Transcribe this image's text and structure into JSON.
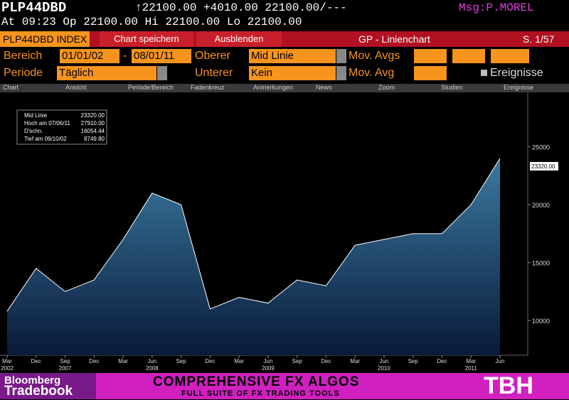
{
  "header": {
    "ticker": "PLP44DBD",
    "quote": "↑22100.00 +4010.00  22100.00/---",
    "message": "Msg:P.MOREL",
    "line2": "At 09:23  Op 22100.00 Hi 22100.00 Lo 22100.00"
  },
  "menu": {
    "index": "PLP44DBD INDEX",
    "save": "Chart speichern",
    "hide": "Ausblenden",
    "title": "GP - Linienchart",
    "page": "S. 1/57"
  },
  "settings": {
    "range_label": "Bereich",
    "start": "01/01/02",
    "dash": "-",
    "end": "08/01/11",
    "upper_label": "Oberer",
    "upper": "Mid Linie",
    "mov_avgs": "Mov. Avgs",
    "period_label": "Periode",
    "period": "Täglich",
    "lower_label": "Unterer",
    "lower": "Kein",
    "mov_avg": "Mov. Avg",
    "events": "Ereignisse"
  },
  "toolbar": [
    "Chart",
    "Ansicht",
    "Periode/Bereich",
    "Fadenkreuz",
    "Anmerkungen",
    "News",
    "Zoom",
    "Studien",
    "Ereignisse"
  ],
  "chart_data": {
    "type": "area",
    "color": "#ffffff",
    "categories": [
      "Mar",
      "Dec",
      "Sep",
      "Dec",
      "Mar",
      "Jun",
      "Sep",
      "Dec",
      "Mar",
      "Jun",
      "Sep",
      "Dec",
      "Mar",
      "Jun",
      "Sep",
      "Dec",
      "Mar",
      "Jun"
    ],
    "years": [
      "2002",
      null,
      "2007",
      null,
      null,
      "2008",
      null,
      null,
      null,
      "2009",
      null,
      null,
      null,
      "2010",
      null,
      null,
      "2011",
      null
    ],
    "values": [
      10800,
      14500,
      12500,
      13500,
      17000,
      21000,
      20000,
      11000,
      12000,
      11500,
      13500,
      13000,
      16500,
      17000,
      17500,
      17500,
      20000,
      24000
    ],
    "ylim": [
      7000,
      29700
    ],
    "yticks": [
      10000,
      15000,
      20000,
      25000
    ],
    "last_value": 23320,
    "last_label": "23320.00",
    "legend": [
      [
        "Mid Linie",
        "23320.00"
      ],
      [
        "Hoch am 07/06/11",
        "27910.00"
      ],
      [
        "D'schn.",
        "16054.44"
      ],
      [
        "Tief am 09/10/02",
        "8749.80"
      ]
    ]
  },
  "banner": {
    "brand1": "Bloomberg",
    "brand2": "Tradebook",
    "headline": "COMPREHENSIVE FX ALGOS",
    "subline": "FULL SUITE OF FX TRADING TOOLS",
    "logo": "TBH"
  }
}
